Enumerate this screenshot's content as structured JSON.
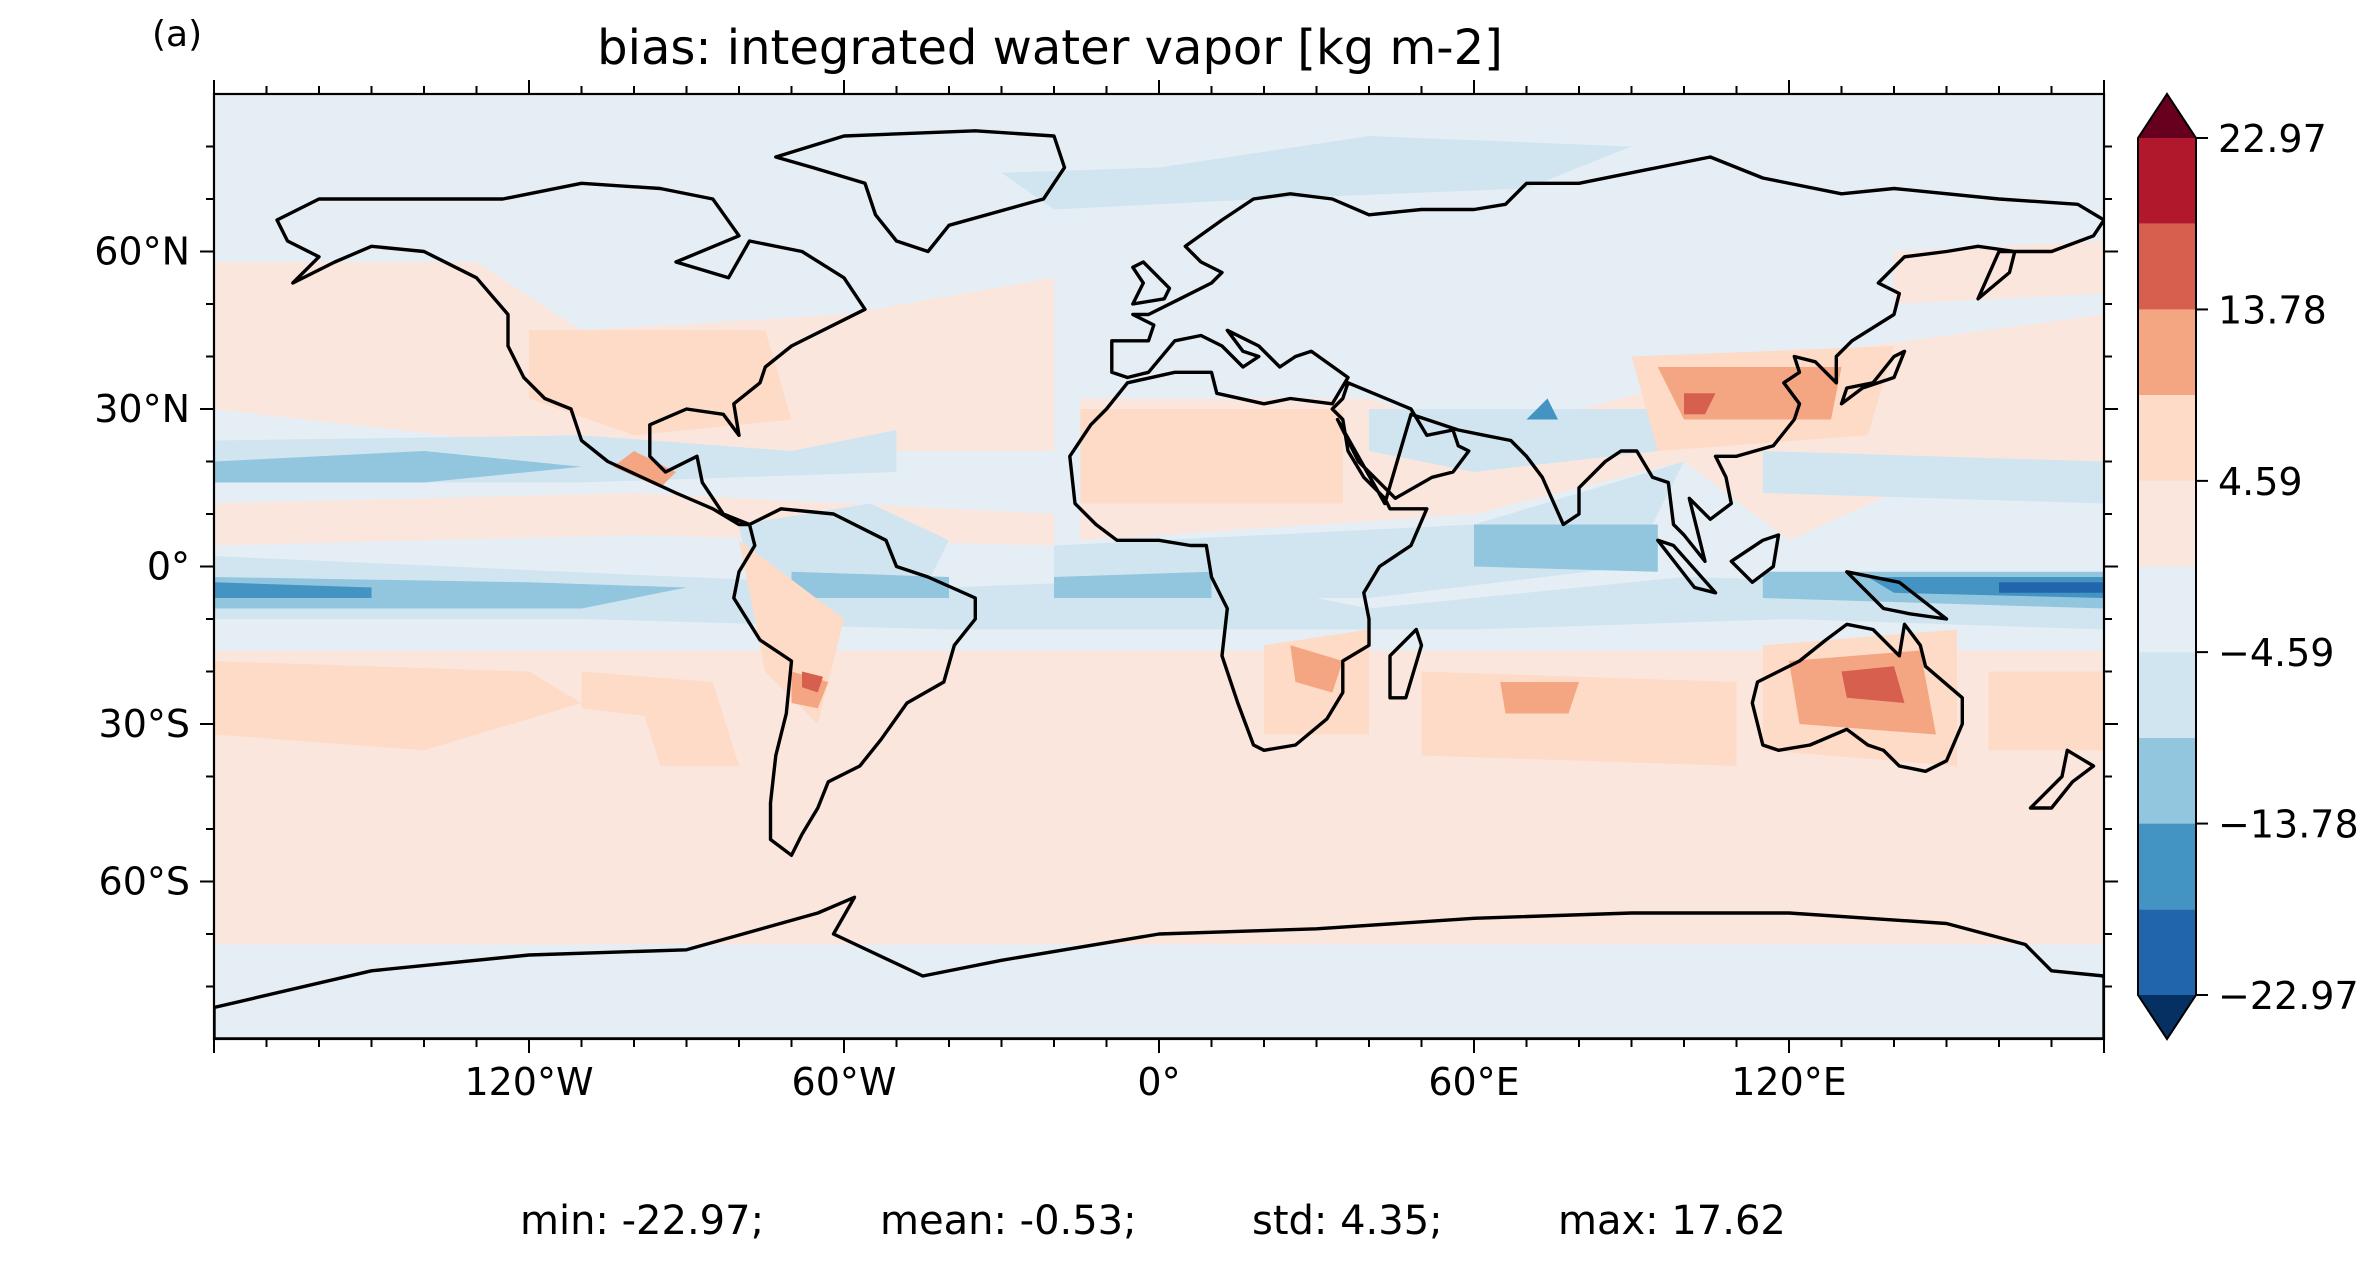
{
  "figure": {
    "panel_label": "(a)",
    "title": "bias: integrated water vapor [kg m-2]"
  },
  "map": {
    "projection": "equirectangular",
    "lon_range": [
      -180,
      180
    ],
    "lat_range": [
      -90,
      90
    ],
    "x_ticks": [
      {
        "lon": -120,
        "label": "120°W"
      },
      {
        "lon": -60,
        "label": "60°W"
      },
      {
        "lon": 0,
        "label": "0°"
      },
      {
        "lon": 60,
        "label": "60°E"
      },
      {
        "lon": 120,
        "label": "120°E"
      }
    ],
    "y_ticks": [
      {
        "lat": 60,
        "label": "60°N"
      },
      {
        "lat": 30,
        "label": "30°N"
      },
      {
        "lat": 0,
        "label": "0°"
      },
      {
        "lat": -30,
        "label": "30°S"
      },
      {
        "lat": -60,
        "label": "60°S"
      }
    ],
    "coastline_color": "#000000",
    "background_color": "#e6eef5"
  },
  "colorbar": {
    "levels": [
      -22.97,
      -18.38,
      -13.78,
      -9.19,
      -4.59,
      0,
      4.59,
      9.19,
      13.78,
      18.38,
      22.97
    ],
    "labels": [
      {
        "value": 22.97,
        "text": "22.97"
      },
      {
        "value": 13.78,
        "text": "13.78"
      },
      {
        "value": 4.59,
        "text": "4.59"
      },
      {
        "value": -4.59,
        "text": "−4.59"
      },
      {
        "value": -13.78,
        "text": "−13.78"
      },
      {
        "value": -22.97,
        "text": "−22.97"
      }
    ],
    "extend": "both",
    "colors": [
      "#053061",
      "#2166ac",
      "#4393c3",
      "#92c5de",
      "#d1e5f0",
      "#e6eef5",
      "#fbe6de",
      "#fddbc7",
      "#f4a582",
      "#d6604d",
      "#b2182b",
      "#67001f"
    ]
  },
  "stats": {
    "min": "min: -22.97;",
    "mean": "mean: -0.53;",
    "std": "std: 4.35;",
    "max": "max: 17.62"
  }
}
